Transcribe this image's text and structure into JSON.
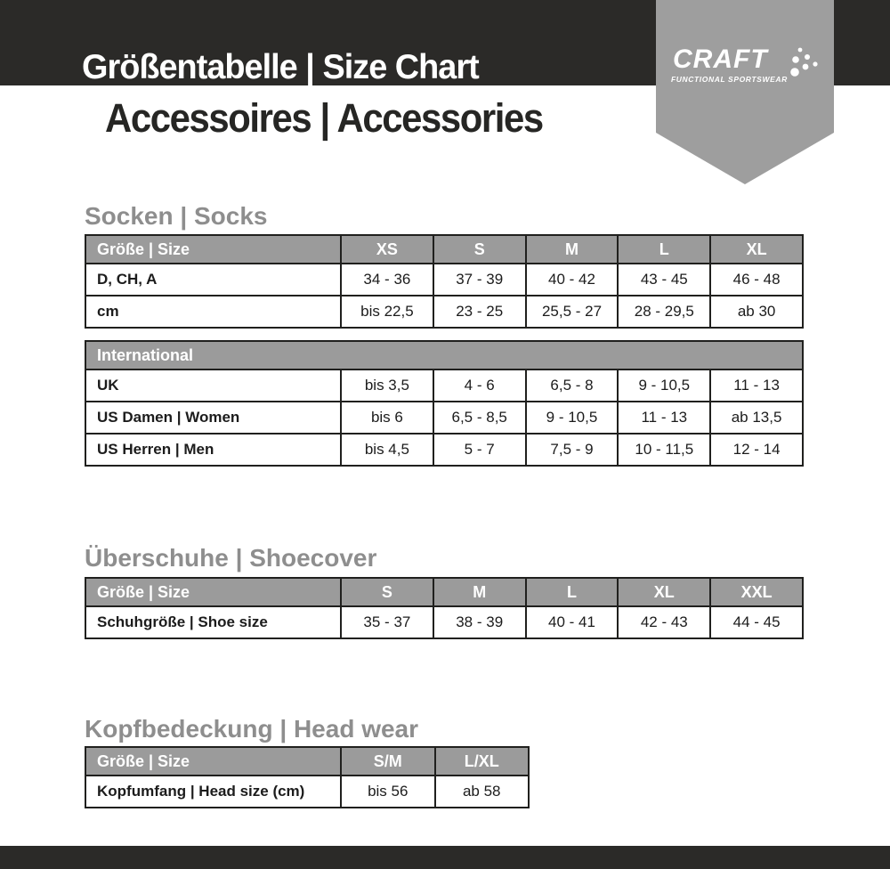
{
  "header": {
    "title": "Größentabelle | Size Chart",
    "subtitle": "Accessoires | Accessories",
    "brand": {
      "name": "CRAFT",
      "tagline": "FUNCTIONAL SPORTSWEAR"
    }
  },
  "sections": [
    {
      "title": "Socken | Socks",
      "tables": [
        {
          "header": [
            "Größe | Size",
            "XS",
            "S",
            "M",
            "L",
            "XL"
          ],
          "rows": [
            [
              "D, CH, A",
              "34 - 36",
              "37 - 39",
              "40 - 42",
              "43 - 45",
              "46 - 48"
            ],
            [
              "cm",
              "bis 22,5",
              "23 - 25",
              "25,5 - 27",
              "28 - 29,5",
              "ab 30"
            ]
          ]
        },
        {
          "header": [
            "International"
          ],
          "rows": [
            [
              "UK",
              "bis 3,5",
              "4 - 6",
              "6,5 - 8",
              "9 - 10,5",
              "11 - 13"
            ],
            [
              "US Damen | Women",
              "bis 6",
              "6,5 - 8,5",
              "9 - 10,5",
              "11 - 13",
              "ab 13,5"
            ],
            [
              "US Herren | Men",
              "bis 4,5",
              "5 - 7",
              "7,5 - 9",
              "10 - 11,5",
              "12 - 14"
            ]
          ]
        }
      ]
    },
    {
      "title": "Überschuhe | Shoecover",
      "tables": [
        {
          "header": [
            "Größe | Size",
            "S",
            "M",
            "L",
            "XL",
            "XXL"
          ],
          "rows": [
            [
              "Schuhgröße | Shoe size",
              "35 - 37",
              "38 - 39",
              "40 - 41",
              "42 - 43",
              "44 - 45"
            ]
          ]
        }
      ]
    },
    {
      "title": "Kopfbedeckung | Head wear",
      "tables": [
        {
          "header": [
            "Größe | Size",
            "S/M",
            "L/XL"
          ],
          "rows": [
            [
              "Kopfumfang | Head size (cm)",
              "bis 56",
              "ab 58"
            ]
          ]
        }
      ]
    }
  ],
  "colors": {
    "black_bar": "#2b2a28",
    "ribbon_gray": "#9e9e9e",
    "table_header_gray": "#9b9b9b",
    "section_title_gray": "#8e8e8e",
    "border_dark": "#20201e"
  }
}
